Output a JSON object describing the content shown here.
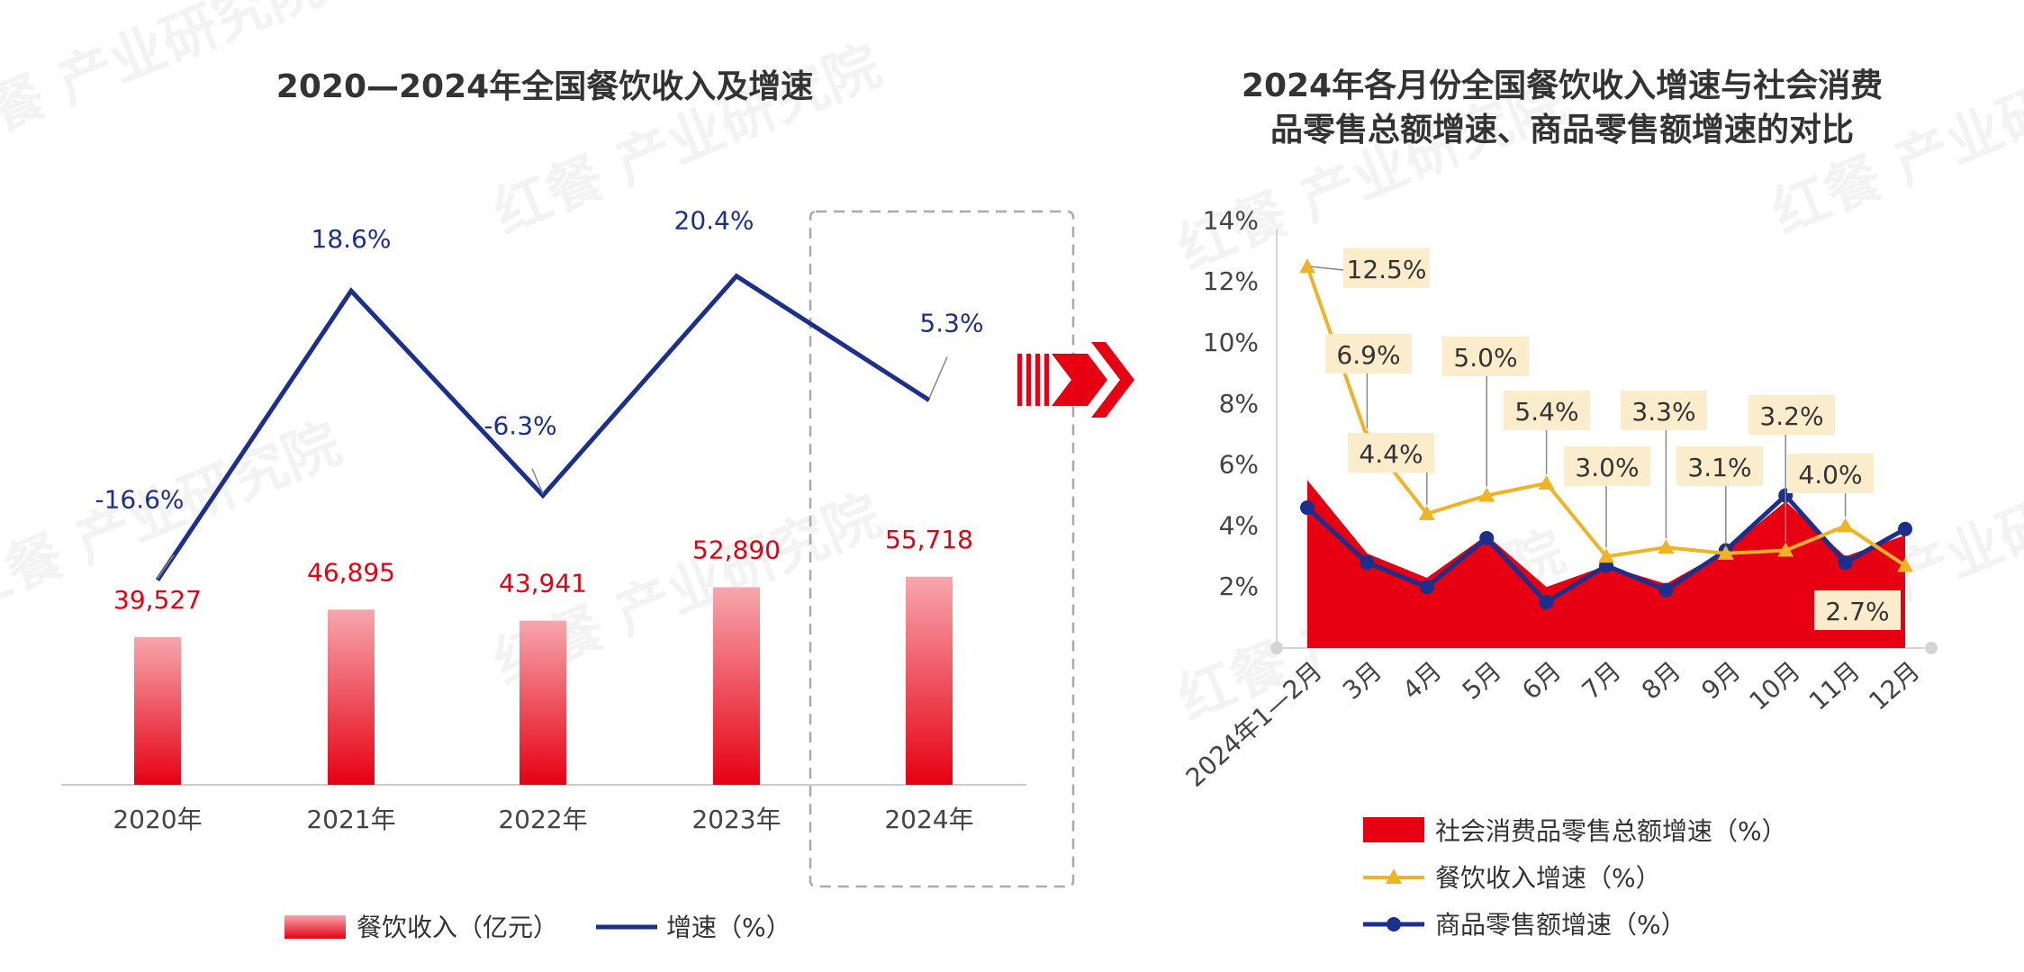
{
  "colors": {
    "red": "#e60012",
    "red_light": "#f7a6ad",
    "blue": "#1b2f8c",
    "gold": "#f0b323",
    "label_red": "#e60012",
    "label_blue": "#1b2f8c",
    "callout_bg": "#fbeccc",
    "axis": "#cccccc",
    "text": "#333333"
  },
  "watermark": {
    "brand": "红餐",
    "text": "产业研究院"
  },
  "arrow_icon": "double-chevron-right-icon",
  "chart_data": [
    {
      "type": "bar",
      "title": "2020—2024年全国餐饮收入及增速",
      "categories": [
        "2020年",
        "2021年",
        "2022年",
        "2023年",
        "2024年"
      ],
      "series": [
        {
          "name": "餐饮收入（亿元）",
          "type": "bar",
          "values": [
            39527,
            46895,
            43941,
            52890,
            55718
          ],
          "labels": [
            "39,527",
            "46,895",
            "43,941",
            "52,890",
            "55,718"
          ]
        },
        {
          "name": "增速（%）",
          "type": "line",
          "values": [
            -16.6,
            18.6,
            -6.3,
            20.4,
            5.3
          ],
          "labels": [
            "-16.6%",
            "18.6%",
            "-6.3%",
            "20.4%",
            "5.3%"
          ]
        }
      ],
      "highlight": "2024年"
    },
    {
      "type": "area",
      "title": "2024年各月份全国餐饮收入增速与社会消费品零售总额增速、商品零售额增速的对比",
      "title_lines": [
        "2024年各月份全国餐饮收入增速与社会消费",
        "品零售总额增速、商品零售额增速的对比"
      ],
      "categories": [
        "2024年1—2月",
        "3月",
        "4月",
        "5月",
        "6月",
        "7月",
        "8月",
        "9月",
        "10月",
        "11月",
        "12月"
      ],
      "yticks": [
        "2%",
        "4%",
        "6%",
        "8%",
        "10%",
        "12%",
        "14%"
      ],
      "ylim": [
        0,
        14
      ],
      "series": [
        {
          "name": "社会消费品零售总额增速（%）",
          "type": "area",
          "values": [
            5.5,
            3.1,
            2.3,
            3.7,
            2.0,
            2.7,
            2.1,
            3.2,
            4.8,
            3.0,
            3.7
          ]
        },
        {
          "name": "餐饮收入增速（%）",
          "type": "line",
          "values": [
            12.5,
            6.9,
            4.4,
            5.0,
            5.4,
            3.0,
            3.3,
            3.1,
            3.2,
            4.0,
            2.7
          ],
          "labels": [
            "12.5%",
            "6.9%",
            "4.4%",
            "5.0%",
            "5.4%",
            "3.0%",
            "3.3%",
            "3.1%",
            "3.2%",
            "4.0%",
            "2.7%"
          ]
        },
        {
          "name": "商品零售额增速（%）",
          "type": "line",
          "values": [
            4.6,
            2.8,
            2.0,
            3.6,
            1.5,
            2.7,
            1.9,
            3.2,
            5.0,
            2.8,
            3.9
          ]
        }
      ]
    }
  ]
}
